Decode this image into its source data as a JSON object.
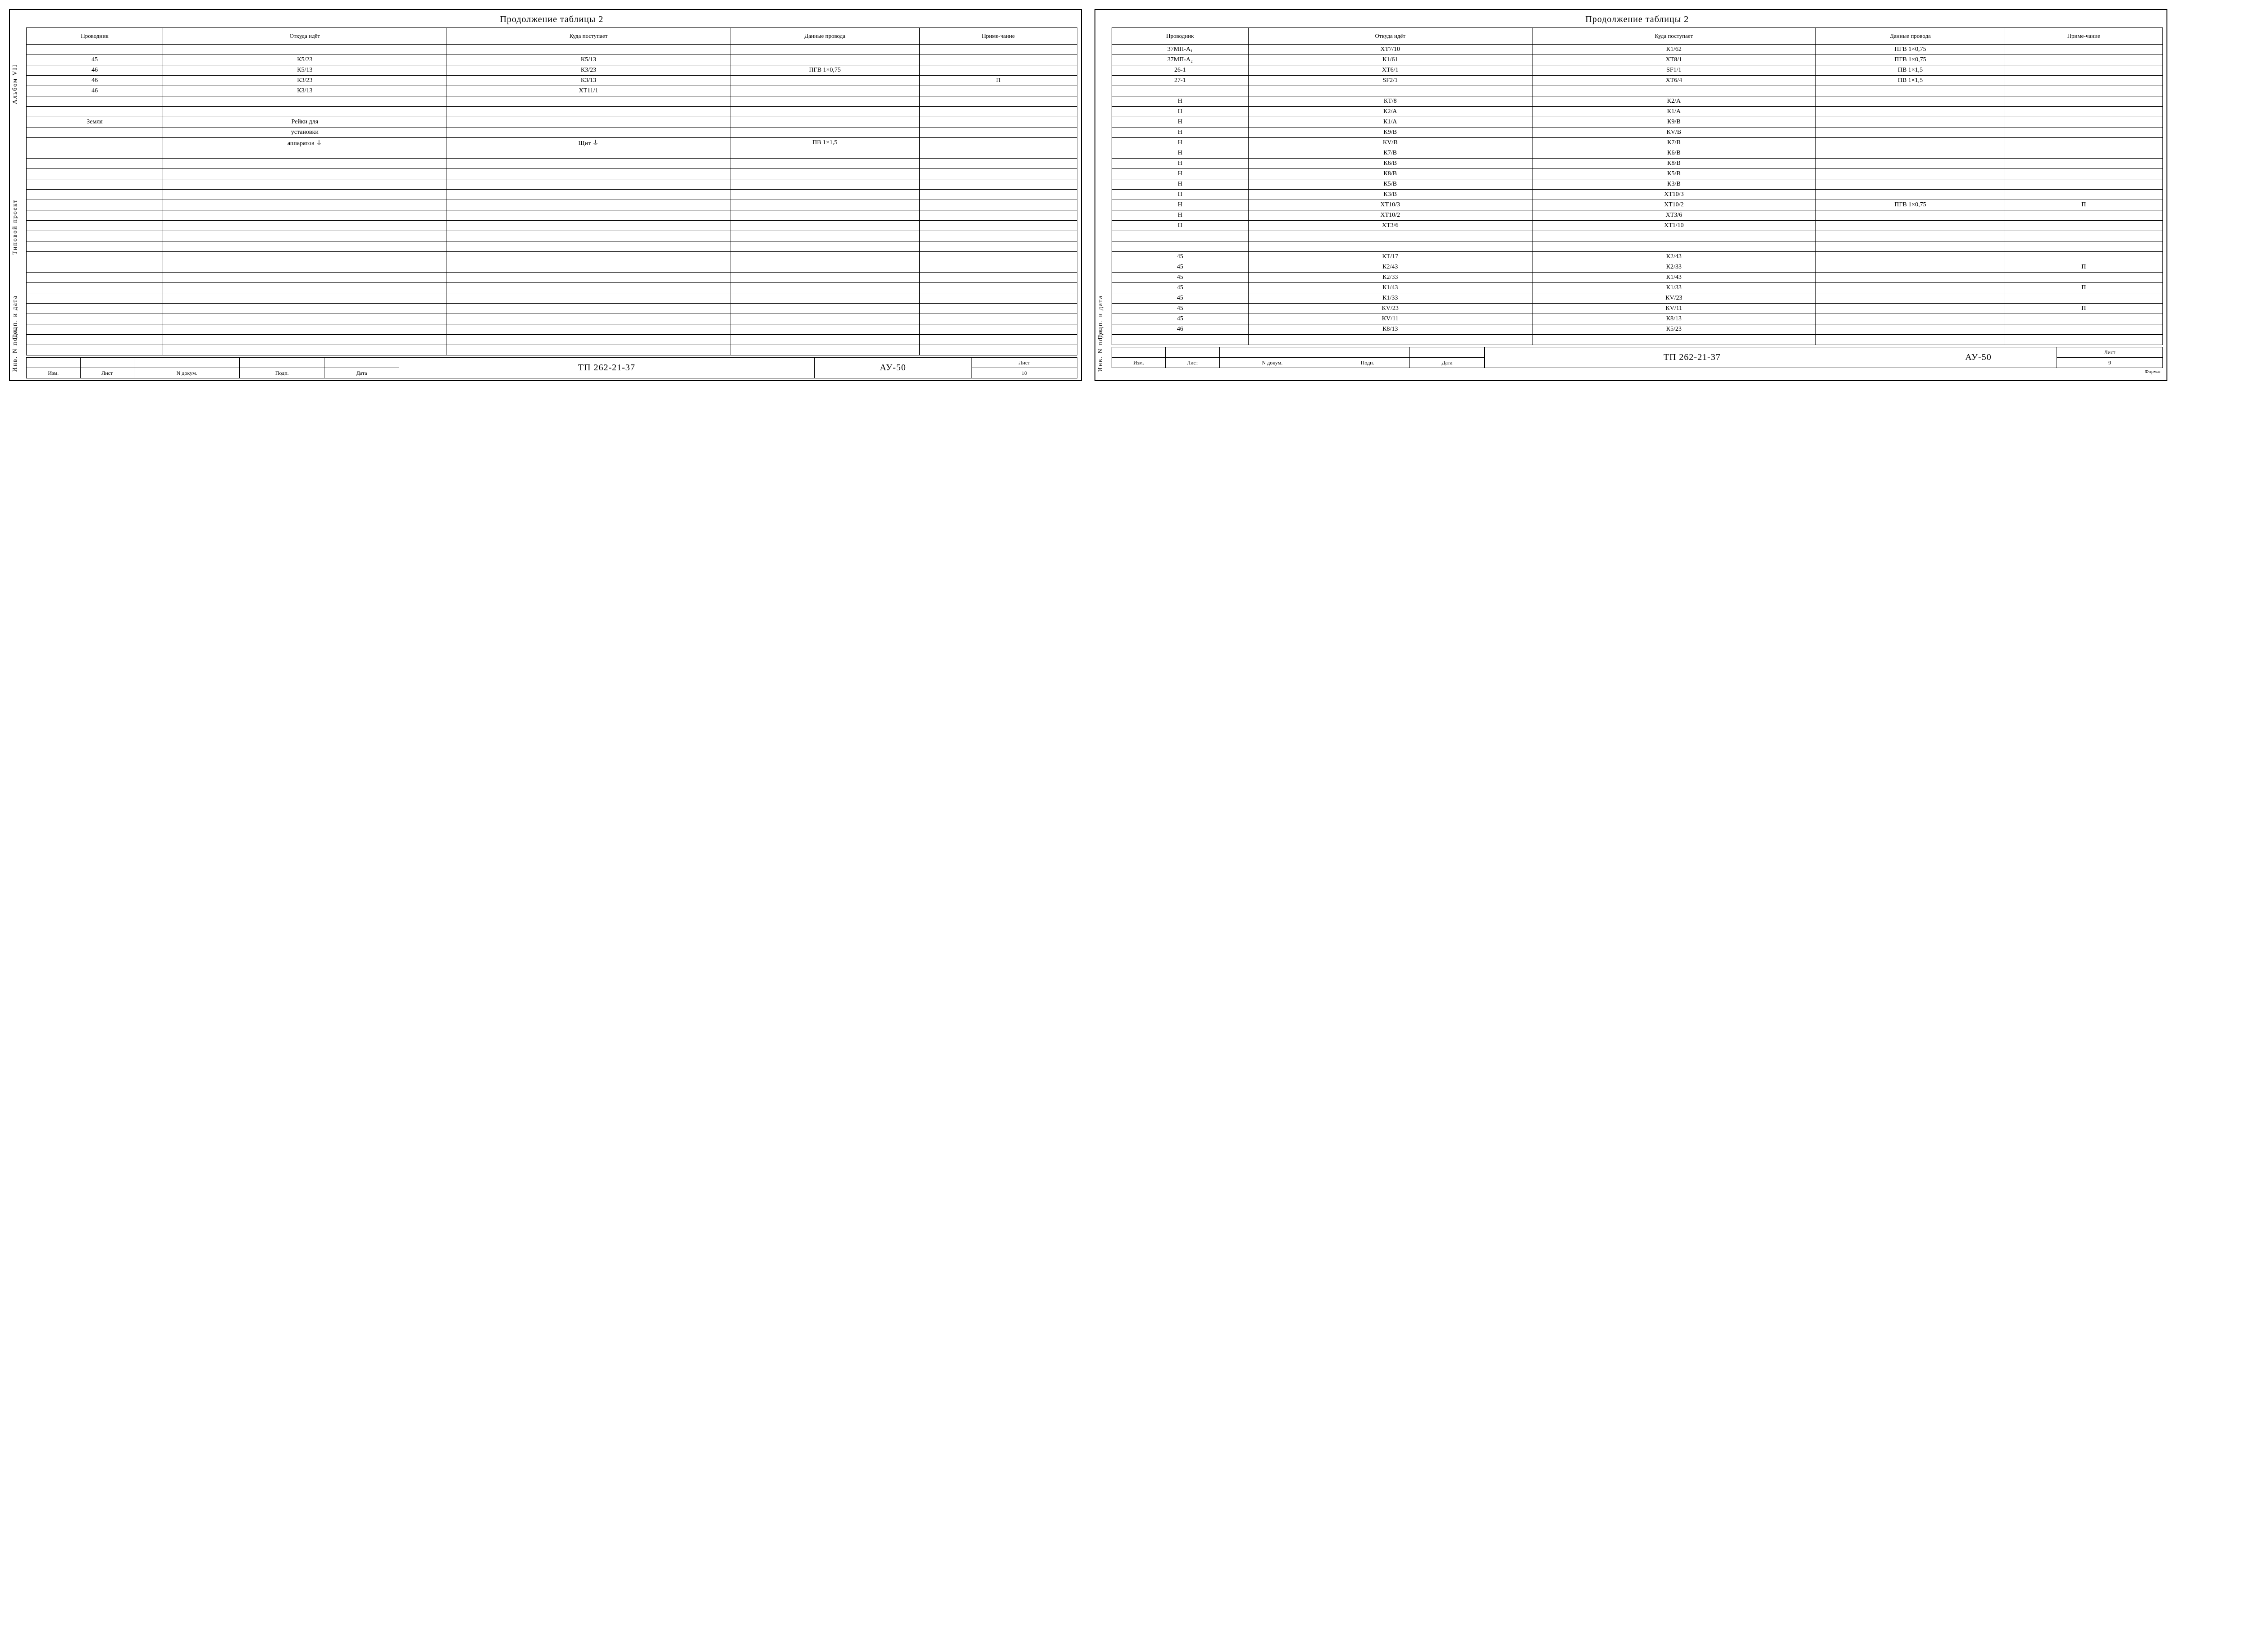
{
  "title": "Продолжение таблицы 2",
  "headers": {
    "c1": "Проводник",
    "c2": "Откуда идёт",
    "c3": "Куда поступает",
    "c4": "Данные провода",
    "c5": "Приме-чание"
  },
  "side": {
    "album": "Альбом VII",
    "proj": "Типовой проект",
    "podp": "Подп. и дата",
    "inv": "Инв. N подл."
  },
  "left_rows": [
    [
      "",
      "",
      "",
      "",
      ""
    ],
    [
      "45",
      "К5/23",
      "К5/13",
      "",
      ""
    ],
    [
      "46",
      "К5/13",
      "К3/23",
      "ПГВ 1×0,75",
      ""
    ],
    [
      "46",
      "К3/23",
      "К3/13",
      "",
      "П"
    ],
    [
      "46",
      "К3/13",
      "ХТ11/1",
      "",
      ""
    ],
    [
      "",
      "",
      "",
      "",
      ""
    ],
    [
      "",
      "",
      "",
      "",
      ""
    ],
    [
      "Земля",
      "Рейки для",
      "",
      "",
      ""
    ],
    [
      "",
      "установки",
      "",
      "",
      ""
    ],
    [
      "",
      "аппаратов   ⏚",
      "Щит   ⏚",
      "ПВ 1×1,5",
      ""
    ],
    [
      "",
      "",
      "",
      "",
      ""
    ],
    [
      "",
      "",
      "",
      "",
      ""
    ],
    [
      "",
      "",
      "",
      "",
      ""
    ],
    [
      "",
      "",
      "",
      "",
      ""
    ],
    [
      "",
      "",
      "",
      "",
      ""
    ],
    [
      "",
      "",
      "",
      "",
      ""
    ],
    [
      "",
      "",
      "",
      "",
      ""
    ],
    [
      "",
      "",
      "",
      "",
      ""
    ],
    [
      "",
      "",
      "",
      "",
      ""
    ],
    [
      "",
      "",
      "",
      "",
      ""
    ],
    [
      "",
      "",
      "",
      "",
      ""
    ],
    [
      "",
      "",
      "",
      "",
      ""
    ],
    [
      "",
      "",
      "",
      "",
      ""
    ],
    [
      "",
      "",
      "",
      "",
      ""
    ],
    [
      "",
      "",
      "",
      "",
      ""
    ],
    [
      "",
      "",
      "",
      "",
      ""
    ],
    [
      "",
      "",
      "",
      "",
      ""
    ],
    [
      "",
      "",
      "",
      "",
      ""
    ],
    [
      "",
      "",
      "",
      "",
      ""
    ],
    [
      "",
      "",
      "",
      "",
      ""
    ]
  ],
  "right_rows": [
    [
      "37МП-А₁",
      "ХТ7/10",
      "К1/62",
      "ПГВ 1×0,75",
      ""
    ],
    [
      "37МП-А₂",
      "К1/61",
      "ХТ8/1",
      "ПГВ 1×0,75",
      ""
    ],
    [
      "26-1",
      "ХТ6/1",
      "SF1/1",
      "ПВ 1×1,5",
      ""
    ],
    [
      "27-1",
      "SF2/1",
      "ХТ6/4",
      "ПВ 1×1,5",
      ""
    ],
    [
      "",
      "",
      "",
      "",
      ""
    ],
    [
      "Н",
      "КТ/8",
      "К2/А",
      "",
      ""
    ],
    [
      "Н",
      "К2/А",
      "К1/А",
      "",
      ""
    ],
    [
      "Н",
      "К1/А",
      "К9/В",
      "",
      ""
    ],
    [
      "Н",
      "К9/В",
      "КV/В",
      "",
      ""
    ],
    [
      "Н",
      "КV/В",
      "К7/В",
      "",
      ""
    ],
    [
      "Н",
      "К7/В",
      "К6/В",
      "",
      ""
    ],
    [
      "Н",
      "К6/В",
      "К8/В",
      "",
      ""
    ],
    [
      "Н",
      "К8/В",
      "К5/В",
      "",
      ""
    ],
    [
      "Н",
      "К5/В",
      "К3/В",
      "",
      ""
    ],
    [
      "Н",
      "К3/В",
      "ХТ10/3",
      "",
      ""
    ],
    [
      "Н",
      "ХТ10/3",
      "ХТ10/2",
      "ПГВ 1×0,75",
      "П"
    ],
    [
      "Н",
      "ХТ10/2",
      "ХТ3/6",
      "",
      ""
    ],
    [
      "Н",
      "ХТ3/6",
      "ХТ1/10",
      "",
      ""
    ],
    [
      "",
      "",
      "",
      "",
      ""
    ],
    [
      "",
      "",
      "",
      "",
      ""
    ],
    [
      "45",
      "КТ/17",
      "К2/43",
      "",
      ""
    ],
    [
      "45",
      "К2/43",
      "К2/33",
      "",
      "П"
    ],
    [
      "45",
      "К2/33",
      "К1/43",
      "",
      ""
    ],
    [
      "45",
      "К1/43",
      "К1/33",
      "",
      "П"
    ],
    [
      "45",
      "К1/33",
      "КV/23",
      "",
      ""
    ],
    [
      "45",
      "КV/23",
      "КV/11",
      "",
      "П"
    ],
    [
      "45",
      "КV/11",
      "К8/13",
      "",
      ""
    ],
    [
      "46",
      "К8/13",
      "К5/23",
      "",
      ""
    ],
    [
      "",
      "",
      "",
      "",
      ""
    ]
  ],
  "stamp": {
    "small": [
      "Изм.",
      "Лист",
      "N докум.",
      "Подп.",
      "Дата"
    ],
    "code": "ТП   262-21-37",
    "unit": "АУ-50",
    "sheet_label": "Лист",
    "left_sheet": "10",
    "right_sheet": "9",
    "format": "Формат"
  },
  "col_widths": [
    "13%",
    "27%",
    "27%",
    "18%",
    "15%"
  ]
}
